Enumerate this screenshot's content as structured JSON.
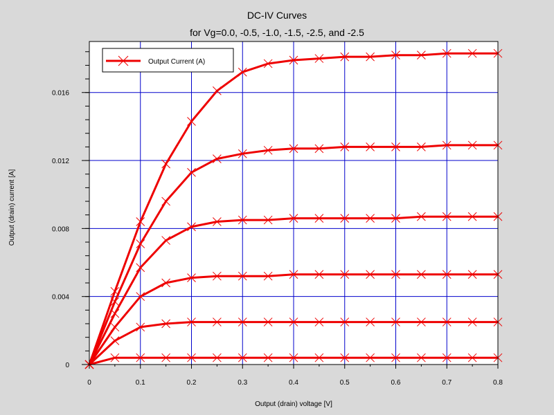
{
  "chart_data": {
    "type": "line",
    "title": "DC-IV Curves",
    "subtitle": "for Vg=0.0, -0.5, -1.0, -1.5, -2.5, and -2.5",
    "xlabel": "Output (drain) voltage [V]",
    "ylabel": "Output (drain) current [A]",
    "xlim": [
      0,
      0.8
    ],
    "ylim": [
      0,
      0.019
    ],
    "xticks": [
      0,
      0.1,
      0.2,
      0.3,
      0.4,
      0.5,
      0.6,
      0.7,
      0.8
    ],
    "xtick_labels": [
      "0",
      "0.1",
      "0.2",
      "0.3",
      "0.4",
      "0.5",
      "0.6",
      "0.7",
      "0.8"
    ],
    "yticks": [
      0,
      0.004,
      0.008,
      0.012,
      0.016
    ],
    "ytick_labels": [
      "0",
      "0.004",
      "0.008",
      "0.012",
      "0.016"
    ],
    "grid": true,
    "legend": {
      "position": "top-left",
      "entries": [
        "Output Current (A)"
      ]
    },
    "line_color": "#ee0000",
    "grid_color": "#0000cc",
    "x": [
      0,
      0.05,
      0.1,
      0.15,
      0.2,
      0.25,
      0.3,
      0.35,
      0.4,
      0.45,
      0.5,
      0.55,
      0.6,
      0.65,
      0.7,
      0.75,
      0.8
    ],
    "series": [
      {
        "values": [
          0,
          0.0043,
          0.0084,
          0.0118,
          0.0143,
          0.0161,
          0.0172,
          0.0177,
          0.0179,
          0.018,
          0.0181,
          0.0181,
          0.0182,
          0.0182,
          0.0183,
          0.0183,
          0.0183
        ]
      },
      {
        "values": [
          0,
          0.0037,
          0.0071,
          0.0096,
          0.0113,
          0.0121,
          0.0124,
          0.0126,
          0.0127,
          0.0127,
          0.0128,
          0.0128,
          0.0128,
          0.0128,
          0.0129,
          0.0129,
          0.0129
        ]
      },
      {
        "values": [
          0,
          0.003,
          0.0057,
          0.0073,
          0.0081,
          0.0084,
          0.0085,
          0.0085,
          0.0086,
          0.0086,
          0.0086,
          0.0086,
          0.0086,
          0.0087,
          0.0087,
          0.0087,
          0.0087
        ]
      },
      {
        "values": [
          0,
          0.0022,
          0.004,
          0.0048,
          0.0051,
          0.0052,
          0.0052,
          0.0052,
          0.0053,
          0.0053,
          0.0053,
          0.0053,
          0.0053,
          0.0053,
          0.0053,
          0.0053,
          0.0053
        ]
      },
      {
        "values": [
          0,
          0.0014,
          0.0022,
          0.0024,
          0.0025,
          0.0025,
          0.0025,
          0.0025,
          0.0025,
          0.0025,
          0.0025,
          0.0025,
          0.0025,
          0.0025,
          0.0025,
          0.0025,
          0.0025
        ]
      },
      {
        "values": [
          0,
          0.0004,
          0.0004,
          0.0004,
          0.0004,
          0.0004,
          0.0004,
          0.0004,
          0.0004,
          0.0004,
          0.0004,
          0.0004,
          0.0004,
          0.0004,
          0.0004,
          0.0004,
          0.0004
        ]
      }
    ]
  }
}
